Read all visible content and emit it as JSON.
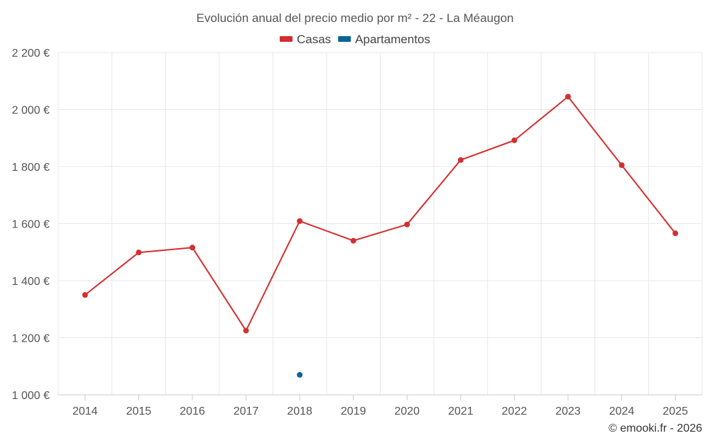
{
  "chart_data": {
    "type": "line",
    "title": "Evolución anual del precio medio por m² - 22 - La Méaugon",
    "xlabel": "",
    "ylabel": "",
    "categories": [
      "2014",
      "2015",
      "2016",
      "2017",
      "2018",
      "2019",
      "2020",
      "2021",
      "2022",
      "2023",
      "2024",
      "2025"
    ],
    "ylim": [
      1000,
      2200
    ],
    "yticks": [
      1000,
      1200,
      1400,
      1600,
      1800,
      2000,
      2200
    ],
    "ytick_labels": [
      "1 000 €",
      "1 200 €",
      "1 400 €",
      "1 600 €",
      "1 800 €",
      "2 000 €",
      "2 200 €"
    ],
    "grid": true,
    "legend_position": "top-center",
    "series": [
      {
        "name": "Casas",
        "color": "#d32f2f",
        "values": [
          1350,
          1499,
          1516,
          1225,
          1609,
          1540,
          1597,
          1823,
          1892,
          2045,
          1805,
          1566
        ]
      },
      {
        "name": "Apartamentos",
        "color": "#0d6499",
        "values": [
          null,
          null,
          null,
          null,
          1070,
          null,
          null,
          null,
          null,
          null,
          null,
          null
        ]
      }
    ],
    "credit": "© emooki.fr - 2026"
  }
}
